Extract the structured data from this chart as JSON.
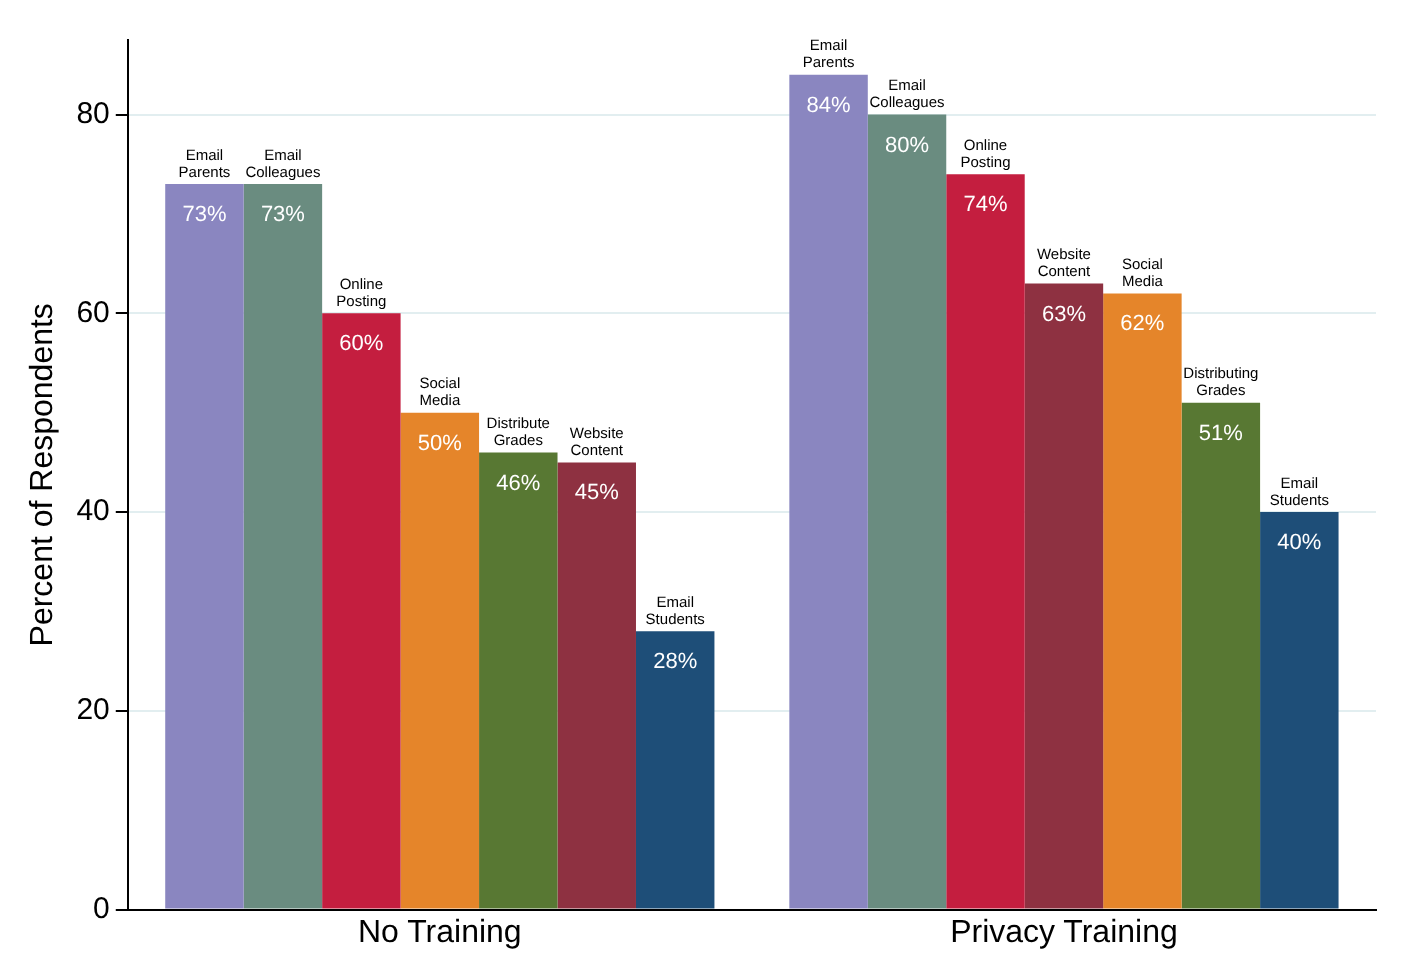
{
  "chart_data": {
    "type": "bar",
    "ylabel": "Percent of Respondents",
    "categories": [
      "No Training",
      "Privacy Training"
    ],
    "ylim": [
      0,
      87.5
    ],
    "yticks": [
      0,
      20,
      40,
      60,
      80
    ],
    "grid": "y",
    "legend": false,
    "series": [
      {
        "colors": [
          "#8a86c0",
          "#8a86c0"
        ],
        "values": [
          73,
          84
        ],
        "value_labels": [
          "73%",
          "84%"
        ]
      },
      {
        "colors": [
          "#6a8c80",
          "#6a8c80"
        ],
        "values": [
          73,
          80
        ],
        "value_labels": [
          "73%",
          "80%"
        ]
      },
      {
        "colors": [
          "#c41e3f",
          "#c41e3f"
        ],
        "values": [
          60,
          74
        ],
        "value_labels": [
          "60%",
          "74%"
        ]
      },
      {
        "colors": [
          "#e5852a",
          "#8e3141"
        ],
        "values": [
          50,
          63
        ],
        "value_labels": [
          "50%",
          "63%"
        ]
      },
      {
        "colors": [
          "#587833",
          "#e5852a"
        ],
        "values": [
          46,
          62
        ],
        "value_labels": [
          "46%",
          "62%"
        ]
      },
      {
        "colors": [
          "#8e3141",
          "#587833"
        ],
        "values": [
          45,
          51
        ],
        "value_labels": [
          "45%",
          "51%"
        ]
      },
      {
        "colors": [
          "#1e4e78",
          "#1e4e78"
        ],
        "values": [
          28,
          40
        ],
        "value_labels": [
          "28%",
          "40%"
        ]
      }
    ],
    "annotations": [
      "Email Parents",
      "Email Colleagues",
      "Online Posting",
      "Social Media",
      "Distribute Grades",
      "Website Content",
      "Email Students",
      "Email Parents",
      "Email Colleagues",
      "Online Posting",
      "Website Content",
      "Social Media",
      "Distributing Grades",
      "Email Students"
    ]
  }
}
